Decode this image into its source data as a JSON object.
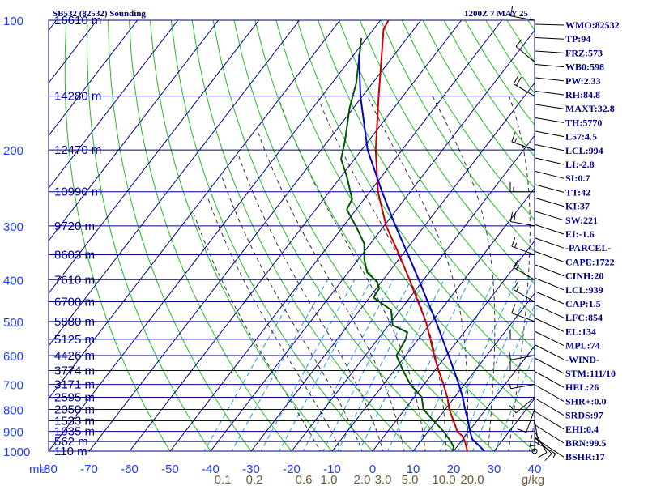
{
  "header": {
    "station": "SB532 (82532) Sounding",
    "time": "1200Z  7 MAY 25"
  },
  "colors": {
    "background": "#ffffff",
    "frame": "#00008b",
    "dry_adiabat": "#22bb22",
    "moist_adiabat": "#333333",
    "mixing_ratio": "#2299ee",
    "temperature": "#cc0000",
    "dewpoint": "#005500",
    "parcel": "#0000cc",
    "label_blue": "#1e3cff",
    "mix_label": "#6b5a3a",
    "index_text": "#00008b",
    "hodo_line": "#000000"
  },
  "chart_data": {
    "type": "skew-t",
    "xlabel": "mb",
    "pressure_ticks": [
      "100",
      "200",
      "300",
      "400",
      "500",
      "600",
      "700",
      "800",
      "900",
      "1000"
    ],
    "temperature_ticks": [
      "-80",
      "-70",
      "-60",
      "-50",
      "-40",
      "-30",
      "-20",
      "-10",
      "0",
      "10",
      "20",
      "30",
      "40"
    ],
    "mixing_ratio_labels": [
      "0.1",
      "0.2",
      "0.6",
      "1.0",
      "2.0",
      "3.0",
      "5.0",
      "10.0",
      "20.0",
      "g/kg"
    ],
    "height_labels": [
      {
        "p": 100,
        "text": "16610 m"
      },
      {
        "p": 150,
        "text": "14280 m"
      },
      {
        "p": 200,
        "text": "12470 m"
      },
      {
        "p": 250,
        "text": "10990 m"
      },
      {
        "p": 300,
        "text": "9720 m"
      },
      {
        "p": 350,
        "text": "8603 m"
      },
      {
        "p": 400,
        "text": "7610 m"
      },
      {
        "p": 450,
        "text": "6700 m"
      },
      {
        "p": 500,
        "text": "5880 m"
      },
      {
        "p": 550,
        "text": "5125 m"
      },
      {
        "p": 600,
        "text": "4426 m"
      },
      {
        "p": 650,
        "text": "3774 m"
      },
      {
        "p": 700,
        "text": "3171 m"
      },
      {
        "p": 750,
        "text": "2595 m"
      },
      {
        "p": 800,
        "text": "2050 m"
      },
      {
        "p": 850,
        "text": "1533 m"
      },
      {
        "p": 900,
        "text": "1035 m"
      },
      {
        "p": 950,
        "text": "562 m"
      },
      {
        "p": 1000,
        "text": "110 m"
      }
    ],
    "temperature_profile": [
      [
        1005,
        24.0
      ],
      [
        1000,
        23.4
      ],
      [
        950,
        21.0
      ],
      [
        925,
        19.5
      ],
      [
        900,
        17.2
      ],
      [
        850,
        14.2
      ],
      [
        800,
        11.0
      ],
      [
        750,
        8.2
      ],
      [
        700,
        4.8
      ],
      [
        650,
        1.0
      ],
      [
        600,
        -3.0
      ],
      [
        550,
        -7.0
      ],
      [
        500,
        -11.5
      ],
      [
        450,
        -17.2
      ],
      [
        400,
        -23.5
      ],
      [
        350,
        -30.8
      ],
      [
        300,
        -39.5
      ],
      [
        250,
        -48.0
      ],
      [
        200,
        -56.5
      ],
      [
        150,
        -66.0
      ],
      [
        105,
        -77.5
      ],
      [
        100,
        -78.0
      ]
    ],
    "dewpoint_profile": [
      [
        1005,
        19.8
      ],
      [
        980,
        19.3
      ],
      [
        950,
        17.5
      ],
      [
        900,
        13.8
      ],
      [
        850,
        9.3
      ],
      [
        800,
        4.6
      ],
      [
        750,
        1.9
      ],
      [
        700,
        -3.4
      ],
      [
        650,
        -7.8
      ],
      [
        600,
        -12.3
      ],
      [
        550,
        -13.1
      ],
      [
        530,
        -14.0
      ],
      [
        510,
        -19.0
      ],
      [
        500,
        -19.8
      ],
      [
        470,
        -22.3
      ],
      [
        440,
        -29.0
      ],
      [
        420,
        -29.3
      ],
      [
        405,
        -31.0
      ],
      [
        385,
        -35.3
      ],
      [
        360,
        -38.4
      ],
      [
        330,
        -41.5
      ],
      [
        300,
        -47.0
      ],
      [
        275,
        -52.3
      ],
      [
        260,
        -53.0
      ],
      [
        230,
        -58.7
      ],
      [
        210,
        -63.3
      ],
      [
        190,
        -65.9
      ],
      [
        160,
        -70.9
      ],
      [
        140,
        -74.0
      ],
      [
        110,
        -81.3
      ]
    ],
    "parcel_profile": [
      [
        1005,
        28.0
      ],
      [
        980,
        26.0
      ],
      [
        939,
        22.4
      ],
      [
        900,
        20.3
      ],
      [
        850,
        17.8
      ],
      [
        800,
        14.9
      ],
      [
        750,
        12.0
      ],
      [
        700,
        8.6
      ],
      [
        650,
        4.8
      ],
      [
        600,
        0.6
      ],
      [
        550,
        -4.0
      ],
      [
        500,
        -9.0
      ],
      [
        450,
        -14.8
      ],
      [
        400,
        -21.2
      ],
      [
        350,
        -28.6
      ],
      [
        300,
        -37.2
      ],
      [
        250,
        -47.0
      ],
      [
        200,
        -58.5
      ],
      [
        150,
        -70.5
      ],
      [
        120,
        -78.8
      ]
    ],
    "wind_barbs": [
      {
        "p": 1000,
        "dir": 110,
        "spd": 0
      },
      {
        "p": 950,
        "dir": 120,
        "spd": 5
      },
      {
        "p": 925,
        "dir": 135,
        "spd": 10
      },
      {
        "p": 900,
        "dir": 150,
        "spd": 10
      },
      {
        "p": 850,
        "dir": 170,
        "spd": 10
      },
      {
        "p": 800,
        "dir": 200,
        "spd": 10
      },
      {
        "p": 750,
        "dir": 230,
        "spd": 10
      },
      {
        "p": 700,
        "dir": 260,
        "spd": 5
      },
      {
        "p": 650,
        "dir": 270,
        "spd": 10
      },
      {
        "p": 600,
        "dir": 260,
        "spd": 10
      },
      {
        "p": 550,
        "dir": 270,
        "spd": 10
      },
      {
        "p": 500,
        "dir": 290,
        "spd": 10
      },
      {
        "p": 450,
        "dir": 300,
        "spd": 15
      },
      {
        "p": 400,
        "dir": 300,
        "spd": 15
      },
      {
        "p": 350,
        "dir": 290,
        "spd": 15
      },
      {
        "p": 300,
        "dir": 280,
        "spd": 20
      },
      {
        "p": 250,
        "dir": 270,
        "spd": 15
      },
      {
        "p": 200,
        "dir": 290,
        "spd": 15
      },
      {
        "p": 150,
        "dir": 300,
        "spd": 20
      },
      {
        "p": 125,
        "dir": 310,
        "spd": 10
      },
      {
        "p": 100,
        "dir": 280,
        "spd": 10
      }
    ]
  },
  "indices": [
    "WMO:82532",
    "TP:94",
    "FRZ:573",
    "WB0:598",
    "PW:2.33",
    "RH:84.8",
    "MAXT:32.8",
    "TH:5770",
    "L57:4.5",
    "LCL:994",
    "LI:-2.8",
    "SI:0.7",
    "TT:42",
    "KI:37",
    "SW:221",
    "EI:-1.6",
    "-PARCEL-",
    "CAPE:1722",
    "CINH:20",
    "LCL:939",
    "CAP:1.5",
    "LFC:854",
    "EL:134",
    "MPL:74",
    "-WIND-",
    "STM:111/10",
    "HEL:26",
    "SHR+:0.0",
    "SRDS:97",
    "EHI:0.4",
    "BRN:99.5",
    "BSHR:17"
  ]
}
